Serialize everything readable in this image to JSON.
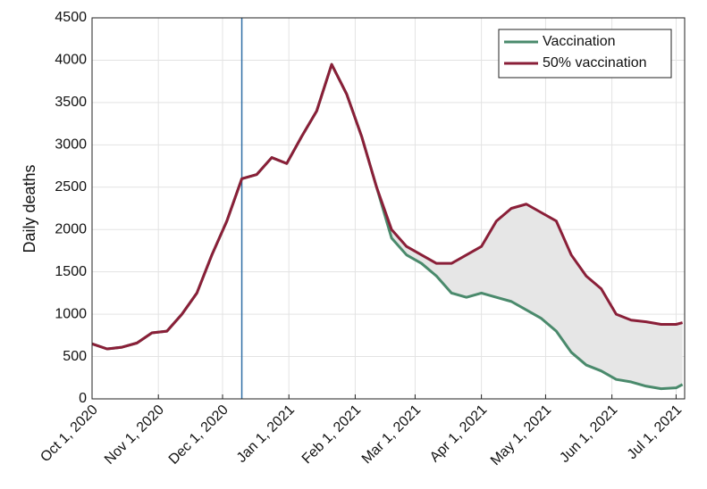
{
  "chart_data": {
    "type": "line",
    "y_label": "Daily deaths",
    "x": [
      "2020-10-01",
      "2020-10-08",
      "2020-10-15",
      "2020-10-22",
      "2020-10-29",
      "2020-11-05",
      "2020-11-12",
      "2020-11-19",
      "2020-11-26",
      "2020-12-03",
      "2020-12-10",
      "2020-12-17",
      "2020-12-24",
      "2020-12-31",
      "2021-01-07",
      "2021-01-14",
      "2021-01-21",
      "2021-01-28",
      "2021-02-04",
      "2021-02-11",
      "2021-02-18",
      "2021-02-25",
      "2021-03-04",
      "2021-03-11",
      "2021-03-18",
      "2021-03-25",
      "2021-04-01",
      "2021-04-08",
      "2021-04-15",
      "2021-04-22",
      "2021-04-29",
      "2021-05-06",
      "2021-05-13",
      "2021-05-20",
      "2021-05-27",
      "2021-06-03",
      "2021-06-10",
      "2021-06-17",
      "2021-06-24",
      "2021-07-01",
      "2021-07-04"
    ],
    "series": [
      {
        "name": "Vaccination",
        "color": "#4a8a6c",
        "values": [
          650,
          590,
          610,
          660,
          780,
          800,
          1000,
          1250,
          1700,
          2100,
          2600,
          2650,
          2850,
          2780,
          3100,
          3400,
          3950,
          3600,
          3100,
          2500,
          1900,
          1700,
          1600,
          1450,
          1250,
          1200,
          1250,
          1200,
          1150,
          1050,
          950,
          800,
          550,
          400,
          330,
          230,
          200,
          150,
          120,
          130,
          170
        ]
      },
      {
        "name": "50% vaccination",
        "color": "#8a1f38",
        "values": [
          650,
          590,
          610,
          660,
          780,
          800,
          1000,
          1250,
          1700,
          2100,
          2600,
          2650,
          2850,
          2780,
          3100,
          3400,
          3950,
          3600,
          3100,
          2500,
          2000,
          1800,
          1700,
          1600,
          1600,
          1700,
          1800,
          2100,
          2250,
          2300,
          2200,
          2100,
          1700,
          1450,
          1300,
          1000,
          930,
          910,
          880,
          880,
          900
        ]
      }
    ],
    "vline": "2020-12-10",
    "xlim": [
      "2020-10-01",
      "2021-07-05"
    ],
    "xticks": [
      {
        "value": "2020-10-01",
        "label": "Oct 1, 2020"
      },
      {
        "value": "2020-11-01",
        "label": "Nov 1, 2020"
      },
      {
        "value": "2020-12-01",
        "label": "Dec 1, 2020"
      },
      {
        "value": "2021-01-01",
        "label": "Jan 1, 2021"
      },
      {
        "value": "2021-02-01",
        "label": "Feb 1, 2021"
      },
      {
        "value": "2021-03-01",
        "label": "Mar 1, 2021"
      },
      {
        "value": "2021-04-01",
        "label": "Apr 1, 2021"
      },
      {
        "value": "2021-05-01",
        "label": "May 1, 2021"
      },
      {
        "value": "2021-06-01",
        "label": "Jun 1, 2021"
      },
      {
        "value": "2021-07-01",
        "label": "Jul 1, 2021"
      }
    ],
    "ylim": [
      0,
      4500
    ],
    "yticks": [
      0,
      500,
      1000,
      1500,
      2000,
      2500,
      3000,
      3500,
      4000,
      4500
    ],
    "grid": true,
    "legend": "upper right"
  }
}
